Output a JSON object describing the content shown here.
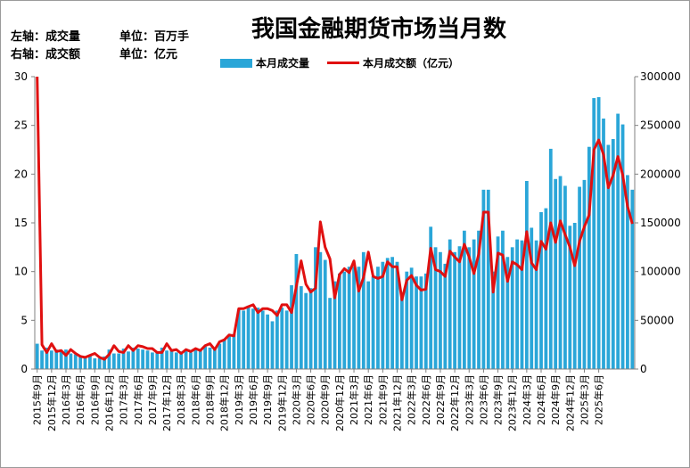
{
  "notes": {
    "left_axis": "左轴：成交量",
    "left_unit": "单位：百万手",
    "right_axis": "右轴：成交额",
    "right_unit": "单位：亿元"
  },
  "colors": {
    "bar": "#2aa6d8",
    "line": "#e01010"
  },
  "chart_data": {
    "type": "bar",
    "title": "我国金融期货市场当月数",
    "legend_placement": "top-center",
    "grid": false,
    "y_left": {
      "min": 0,
      "max": 30,
      "ticks": [
        0,
        5,
        10,
        15,
        20,
        25,
        30
      ]
    },
    "y_right": {
      "min": 0,
      "max": 300000,
      "ticks": [
        0,
        50000,
        100000,
        150000,
        200000,
        250000,
        300000
      ]
    },
    "x_tick_labels": [
      "2015年9月",
      "2015年12月",
      "2016年3月",
      "2016年6月",
      "2016年9月",
      "2016年12月",
      "2017年3月",
      "2017年6月",
      "2017年9月",
      "2017年12月",
      "2018年3月",
      "2018年6月",
      "2018年9月",
      "2018年12月",
      "2019年3月",
      "2019年6月",
      "2019年9月",
      "2019年12月",
      "2020年3月",
      "2020年6月",
      "2020年9月",
      "2020年12月",
      "2021年3月",
      "2021年6月",
      "2021年9月",
      "2021年12月",
      "2022年3月",
      "2022年6月",
      "2022年9月",
      "2022年12月",
      "2023年3月",
      "2023年6月",
      "2023年9月",
      "2023年12月",
      "2024年3月",
      "2024年6月",
      "2024年9月",
      "2024年12月",
      "2025年3月",
      "2025年6月"
    ],
    "series": [
      {
        "name": "本月成交量",
        "type": "bar",
        "axis": "left",
        "values": [
          2.6,
          1.9,
          2.2,
          1.9,
          2.0,
          1.8,
          2.0,
          1.6,
          1.5,
          1.3,
          1.2,
          1.4,
          1.1,
          1.1,
          1.3,
          2.0,
          1.6,
          1.6,
          2.1,
          1.8,
          2.2,
          2.1,
          2.0,
          1.9,
          1.7,
          1.8,
          2.2,
          1.9,
          1.9,
          1.7,
          1.8,
          1.9,
          1.7,
          2.0,
          2.0,
          2.3,
          2.2,
          2.2,
          2.6,
          3.0,
          3.4,
          3.6,
          6.1,
          6.0,
          6.5,
          6.2,
          6.3,
          6.0,
          5.6,
          4.9,
          6.0,
          6.3,
          6.0,
          8.6,
          11.8,
          8.5,
          7.8,
          8.3,
          12.5,
          12.0,
          11.2,
          7.3,
          9.0,
          9.8,
          10.0,
          10.5,
          10.5,
          10.5,
          12.0,
          9.0,
          9.5,
          10.5,
          11.0,
          11.4,
          11.5,
          11.0,
          7.8,
          10.0,
          10.4,
          9.5,
          9.5,
          9.8,
          14.6,
          12.5,
          12.0,
          10.8,
          13.3,
          12.0,
          12.6,
          14.2,
          12.5,
          13.3,
          14.2,
          18.4,
          18.4,
          10.0,
          13.6,
          14.2,
          11.5,
          12.5,
          13.3,
          13.2,
          19.3,
          14.5,
          13.2,
          16.1,
          16.5,
          22.6,
          19.5,
          19.8,
          18.8,
          14.7,
          15.0,
          18.7,
          19.4,
          22.8,
          27.8,
          27.9,
          25.7,
          23.0,
          23.6,
          26.2,
          25.1,
          19.9,
          18.4
        ],
        "color": "#2aa6d8"
      },
      {
        "name": "本月成交额（亿元）",
        "type": "line",
        "axis": "right",
        "values": [
          300000,
          25000,
          17000,
          26000,
          18000,
          19000,
          14000,
          20000,
          16000,
          13000,
          12000,
          14000,
          16000,
          12000,
          10000,
          15000,
          24000,
          18000,
          17000,
          24000,
          19000,
          24000,
          23000,
          21000,
          21000,
          17000,
          17000,
          26000,
          19000,
          20000,
          16000,
          20000,
          18000,
          21000,
          19000,
          24000,
          26000,
          20000,
          28000,
          30000,
          35000,
          34000,
          62000,
          62000,
          64000,
          66000,
          58000,
          62000,
          62000,
          60000,
          55000,
          66000,
          66000,
          58000,
          85000,
          111000,
          87000,
          79000,
          83000,
          151000,
          125000,
          113000,
          73000,
          97000,
          103000,
          99000,
          111000,
          80000,
          94000,
          120000,
          95000,
          93000,
          95000,
          110000,
          105000,
          105000,
          71000,
          91000,
          96000,
          86000,
          81000,
          82000,
          124000,
          102000,
          100000,
          95000,
          121000,
          115000,
          110000,
          128000,
          115000,
          98000,
          118000,
          161000,
          161000,
          79000,
          119000,
          117000,
          90000,
          110000,
          107000,
          102000,
          141000,
          109000,
          102000,
          131000,
          123000,
          150000,
          130000,
          152000,
          138000,
          125000,
          106000,
          131000,
          146000,
          158000,
          225000,
          235000,
          220000,
          186000,
          199000,
          218000,
          199000,
          167000,
          149000
        ],
        "color": "#e01010"
      }
    ]
  }
}
